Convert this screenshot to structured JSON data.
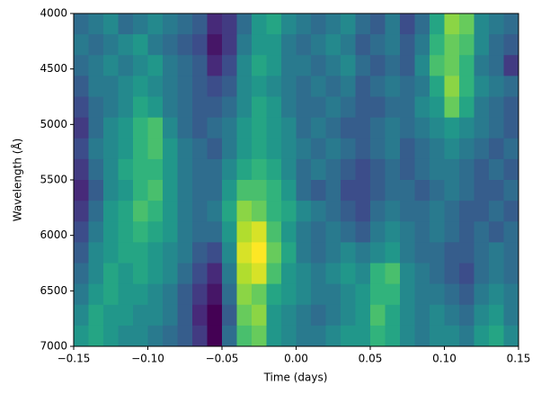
{
  "chart_data": {
    "type": "heatmap",
    "colormap": "viridis",
    "xlabel": "Time (days)",
    "ylabel": "Wavelength (Å)",
    "xlim": [
      -0.15,
      0.15
    ],
    "ylim": [
      7000,
      4000
    ],
    "xticks": [
      {
        "value": -0.15,
        "label": "−0.15"
      },
      {
        "value": -0.1,
        "label": "−0.10"
      },
      {
        "value": -0.05,
        "label": "−0.05"
      },
      {
        "value": 0,
        "label": "0.00"
      },
      {
        "value": 0.05,
        "label": "0.05"
      },
      {
        "value": 0.1,
        "label": "0.10"
      },
      {
        "value": 0.15,
        "label": "0.15"
      }
    ],
    "yticks": [
      4000,
      4500,
      5000,
      5500,
      6000,
      6500,
      7000
    ],
    "z": [
      [
        0.35,
        0.4,
        0.45,
        0.35,
        0.4,
        0.45,
        0.4,
        0.35,
        0.3,
        0.15,
        0.2,
        0.35,
        0.5,
        0.55,
        0.45,
        0.4,
        0.35,
        0.4,
        0.45,
        0.35,
        0.3,
        0.4,
        0.25,
        0.35,
        0.55,
        0.75,
        0.7,
        0.45,
        0.4,
        0.35
      ],
      [
        0.4,
        0.35,
        0.4,
        0.45,
        0.5,
        0.4,
        0.35,
        0.3,
        0.25,
        0.1,
        0.2,
        0.4,
        0.5,
        0.5,
        0.4,
        0.35,
        0.4,
        0.45,
        0.4,
        0.3,
        0.35,
        0.4,
        0.3,
        0.4,
        0.6,
        0.7,
        0.65,
        0.45,
        0.35,
        0.3
      ],
      [
        0.35,
        0.4,
        0.45,
        0.4,
        0.45,
        0.5,
        0.4,
        0.35,
        0.3,
        0.15,
        0.25,
        0.45,
        0.55,
        0.5,
        0.4,
        0.4,
        0.35,
        0.4,
        0.45,
        0.35,
        0.3,
        0.35,
        0.3,
        0.45,
        0.65,
        0.7,
        0.6,
        0.4,
        0.35,
        0.2
      ],
      [
        0.3,
        0.4,
        0.4,
        0.45,
        0.5,
        0.45,
        0.4,
        0.35,
        0.3,
        0.25,
        0.3,
        0.45,
        0.5,
        0.45,
        0.4,
        0.35,
        0.4,
        0.35,
        0.4,
        0.3,
        0.35,
        0.4,
        0.35,
        0.4,
        0.55,
        0.75,
        0.6,
        0.45,
        0.4,
        0.35
      ],
      [
        0.25,
        0.35,
        0.4,
        0.45,
        0.55,
        0.5,
        0.4,
        0.35,
        0.3,
        0.3,
        0.35,
        0.45,
        0.55,
        0.5,
        0.4,
        0.35,
        0.35,
        0.4,
        0.35,
        0.3,
        0.3,
        0.35,
        0.35,
        0.45,
        0.5,
        0.7,
        0.55,
        0.4,
        0.35,
        0.3
      ],
      [
        0.2,
        0.35,
        0.45,
        0.5,
        0.6,
        0.65,
        0.45,
        0.35,
        0.3,
        0.35,
        0.4,
        0.5,
        0.55,
        0.5,
        0.45,
        0.35,
        0.4,
        0.35,
        0.3,
        0.3,
        0.35,
        0.4,
        0.35,
        0.4,
        0.45,
        0.5,
        0.45,
        0.4,
        0.35,
        0.3
      ],
      [
        0.25,
        0.4,
        0.45,
        0.5,
        0.6,
        0.65,
        0.5,
        0.4,
        0.35,
        0.3,
        0.4,
        0.5,
        0.55,
        0.5,
        0.45,
        0.4,
        0.35,
        0.4,
        0.35,
        0.3,
        0.35,
        0.4,
        0.3,
        0.35,
        0.4,
        0.45,
        0.4,
        0.35,
        0.3,
        0.35
      ],
      [
        0.2,
        0.35,
        0.45,
        0.55,
        0.6,
        0.6,
        0.5,
        0.4,
        0.35,
        0.35,
        0.45,
        0.55,
        0.6,
        0.55,
        0.45,
        0.35,
        0.4,
        0.35,
        0.3,
        0.25,
        0.3,
        0.35,
        0.3,
        0.35,
        0.4,
        0.4,
        0.35,
        0.3,
        0.35,
        0.3
      ],
      [
        0.15,
        0.3,
        0.45,
        0.5,
        0.6,
        0.65,
        0.5,
        0.4,
        0.35,
        0.35,
        0.5,
        0.65,
        0.65,
        0.6,
        0.5,
        0.35,
        0.3,
        0.35,
        0.25,
        0.25,
        0.3,
        0.35,
        0.35,
        0.3,
        0.35,
        0.4,
        0.35,
        0.3,
        0.3,
        0.35
      ],
      [
        0.2,
        0.35,
        0.5,
        0.55,
        0.65,
        0.6,
        0.5,
        0.4,
        0.35,
        0.4,
        0.55,
        0.75,
        0.7,
        0.6,
        0.55,
        0.45,
        0.4,
        0.35,
        0.3,
        0.25,
        0.35,
        0.4,
        0.35,
        0.35,
        0.4,
        0.35,
        0.3,
        0.3,
        0.35,
        0.3
      ],
      [
        0.25,
        0.4,
        0.5,
        0.55,
        0.6,
        0.55,
        0.5,
        0.4,
        0.35,
        0.35,
        0.5,
        0.8,
        0.85,
        0.65,
        0.5,
        0.4,
        0.35,
        0.4,
        0.35,
        0.3,
        0.4,
        0.45,
        0.4,
        0.35,
        0.4,
        0.35,
        0.3,
        0.35,
        0.3,
        0.35
      ],
      [
        0.3,
        0.45,
        0.5,
        0.55,
        0.55,
        0.5,
        0.45,
        0.4,
        0.3,
        0.25,
        0.45,
        0.85,
        0.9,
        0.7,
        0.55,
        0.4,
        0.35,
        0.4,
        0.45,
        0.4,
        0.45,
        0.5,
        0.4,
        0.35,
        0.35,
        0.3,
        0.3,
        0.35,
        0.4,
        0.35
      ],
      [
        0.35,
        0.45,
        0.55,
        0.5,
        0.55,
        0.5,
        0.45,
        0.35,
        0.25,
        0.15,
        0.4,
        0.8,
        0.85,
        0.65,
        0.5,
        0.45,
        0.4,
        0.45,
        0.5,
        0.45,
        0.6,
        0.65,
        0.45,
        0.4,
        0.35,
        0.3,
        0.25,
        0.35,
        0.4,
        0.35
      ],
      [
        0.4,
        0.5,
        0.55,
        0.5,
        0.5,
        0.45,
        0.4,
        0.3,
        0.2,
        0.1,
        0.35,
        0.75,
        0.7,
        0.55,
        0.5,
        0.45,
        0.4,
        0.4,
        0.45,
        0.5,
        0.6,
        0.6,
        0.45,
        0.4,
        0.4,
        0.35,
        0.3,
        0.4,
        0.45,
        0.4
      ],
      [
        0.45,
        0.55,
        0.5,
        0.5,
        0.45,
        0.45,
        0.4,
        0.3,
        0.15,
        0.05,
        0.3,
        0.7,
        0.75,
        0.5,
        0.45,
        0.4,
        0.35,
        0.4,
        0.45,
        0.5,
        0.65,
        0.55,
        0.45,
        0.4,
        0.45,
        0.4,
        0.35,
        0.45,
        0.5,
        0.4
      ],
      [
        0.5,
        0.55,
        0.5,
        0.45,
        0.45,
        0.4,
        0.35,
        0.3,
        0.2,
        0.05,
        0.35,
        0.65,
        0.7,
        0.5,
        0.45,
        0.4,
        0.4,
        0.45,
        0.5,
        0.5,
        0.6,
        0.55,
        0.45,
        0.4,
        0.45,
        0.45,
        0.4,
        0.5,
        0.55,
        0.45
      ]
    ]
  }
}
